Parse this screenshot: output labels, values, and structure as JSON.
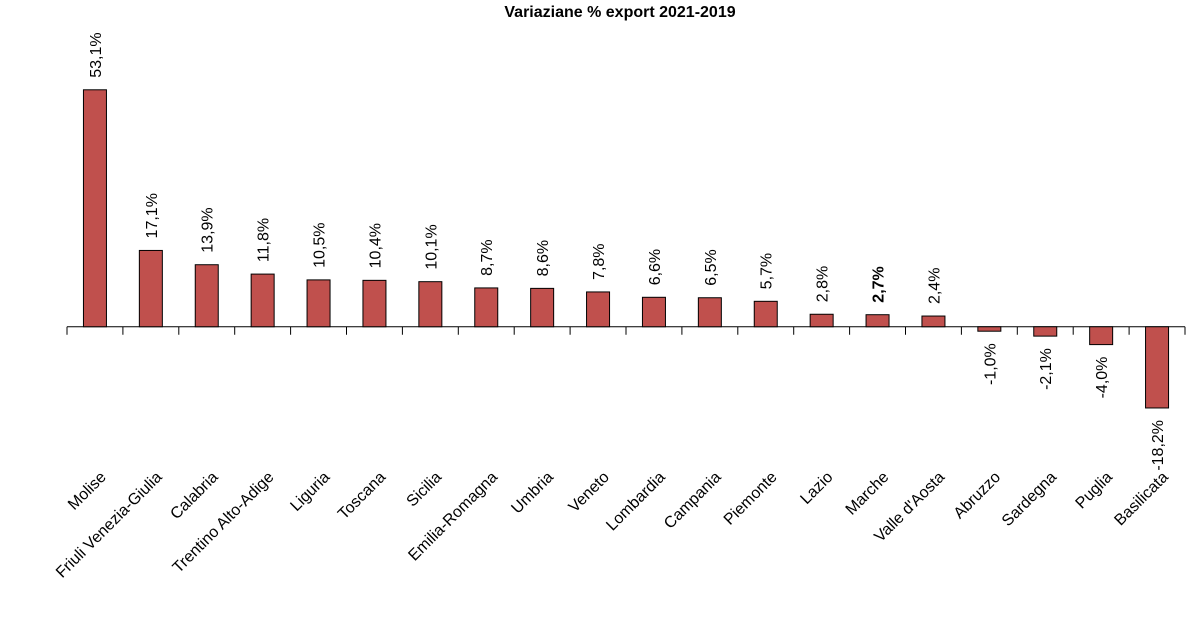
{
  "chart_data": {
    "type": "bar",
    "title": "Variaziane % export 2021-2019",
    "categories": [
      "Molise",
      "Friuli Venezia-Giulia",
      "Calabria",
      "Trentino Alto-Adige",
      "Liguria",
      "Toscana",
      "Sicilia",
      "Emilia-Romagna",
      "Umbria",
      "Veneto",
      "Lombardia",
      "Campania",
      "Piemonte",
      "Lazio",
      "Marche",
      "Valle d'Aosta",
      "Abruzzo",
      "Sardegna",
      "Puglia",
      "Basilicata"
    ],
    "values": [
      53.1,
      17.1,
      13.9,
      11.8,
      10.5,
      10.4,
      10.1,
      8.7,
      8.6,
      7.8,
      6.6,
      6.5,
      5.7,
      2.8,
      2.7,
      2.4,
      -1.0,
      -2.1,
      -4.0,
      -18.2
    ],
    "value_labels": [
      "53,1%",
      "17,1%",
      "13,9%",
      "11,8%",
      "10,5%",
      "10,4%",
      "10,1%",
      "8,7%",
      "8,6%",
      "7,8%",
      "6,6%",
      "6,5%",
      "5,7%",
      "2,8%",
      "2,7%",
      "2,4%",
      "-1,0%",
      "-2,1%",
      "-4,0%",
      "-18,2%"
    ],
    "emphasis": "Marche",
    "color": "#c0504d",
    "ylim": [
      -20,
      60
    ]
  }
}
